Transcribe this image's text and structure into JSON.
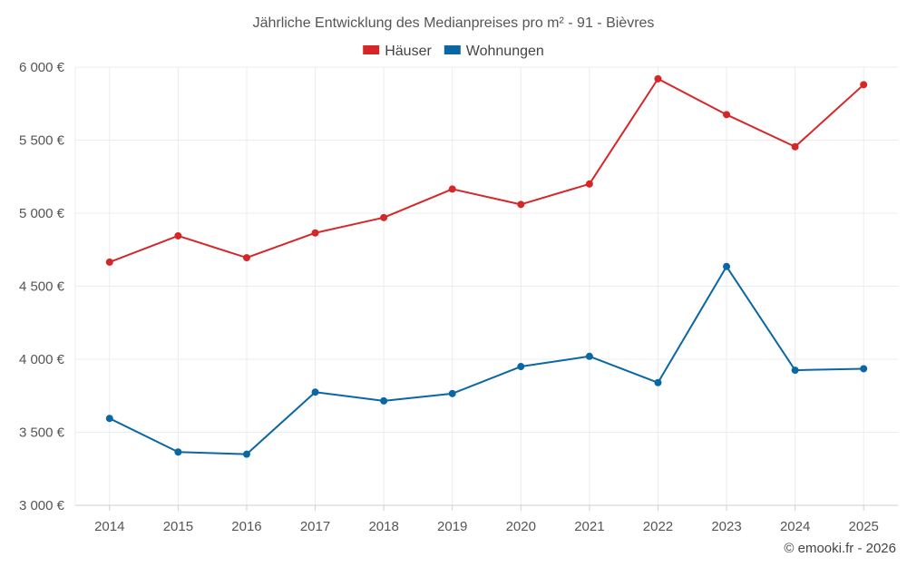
{
  "chart_data": {
    "type": "line",
    "title": "Jährliche Entwicklung des Medianpreises pro m² - 91 - Bièvres",
    "xlabel": "",
    "ylabel": "",
    "categories": [
      "2014",
      "2015",
      "2016",
      "2017",
      "2018",
      "2019",
      "2020",
      "2021",
      "2022",
      "2023",
      "2024",
      "2025"
    ],
    "ylim": [
      3000,
      6000
    ],
    "yticks": [
      3000,
      3500,
      4000,
      4500,
      5000,
      5500,
      6000
    ],
    "ytick_labels": [
      "3 000 €",
      "3 500 €",
      "4 000 €",
      "4 500 €",
      "5 000 €",
      "5 500 €",
      "6 000 €"
    ],
    "grid": true,
    "legend_position": "top-center",
    "series": [
      {
        "name": "Häuser",
        "color": "#d62728",
        "values": [
          4665,
          4845,
          4695,
          4865,
          4970,
          5165,
          5060,
          5200,
          5920,
          5675,
          5455,
          5880
        ]
      },
      {
        "name": "Wohnungen",
        "color": "#0a67a3",
        "values": [
          3595,
          3365,
          3350,
          3775,
          3715,
          3765,
          3950,
          4020,
          3840,
          4635,
          3925,
          3935
        ]
      }
    ],
    "credit": "© emooki.fr - 2026"
  }
}
